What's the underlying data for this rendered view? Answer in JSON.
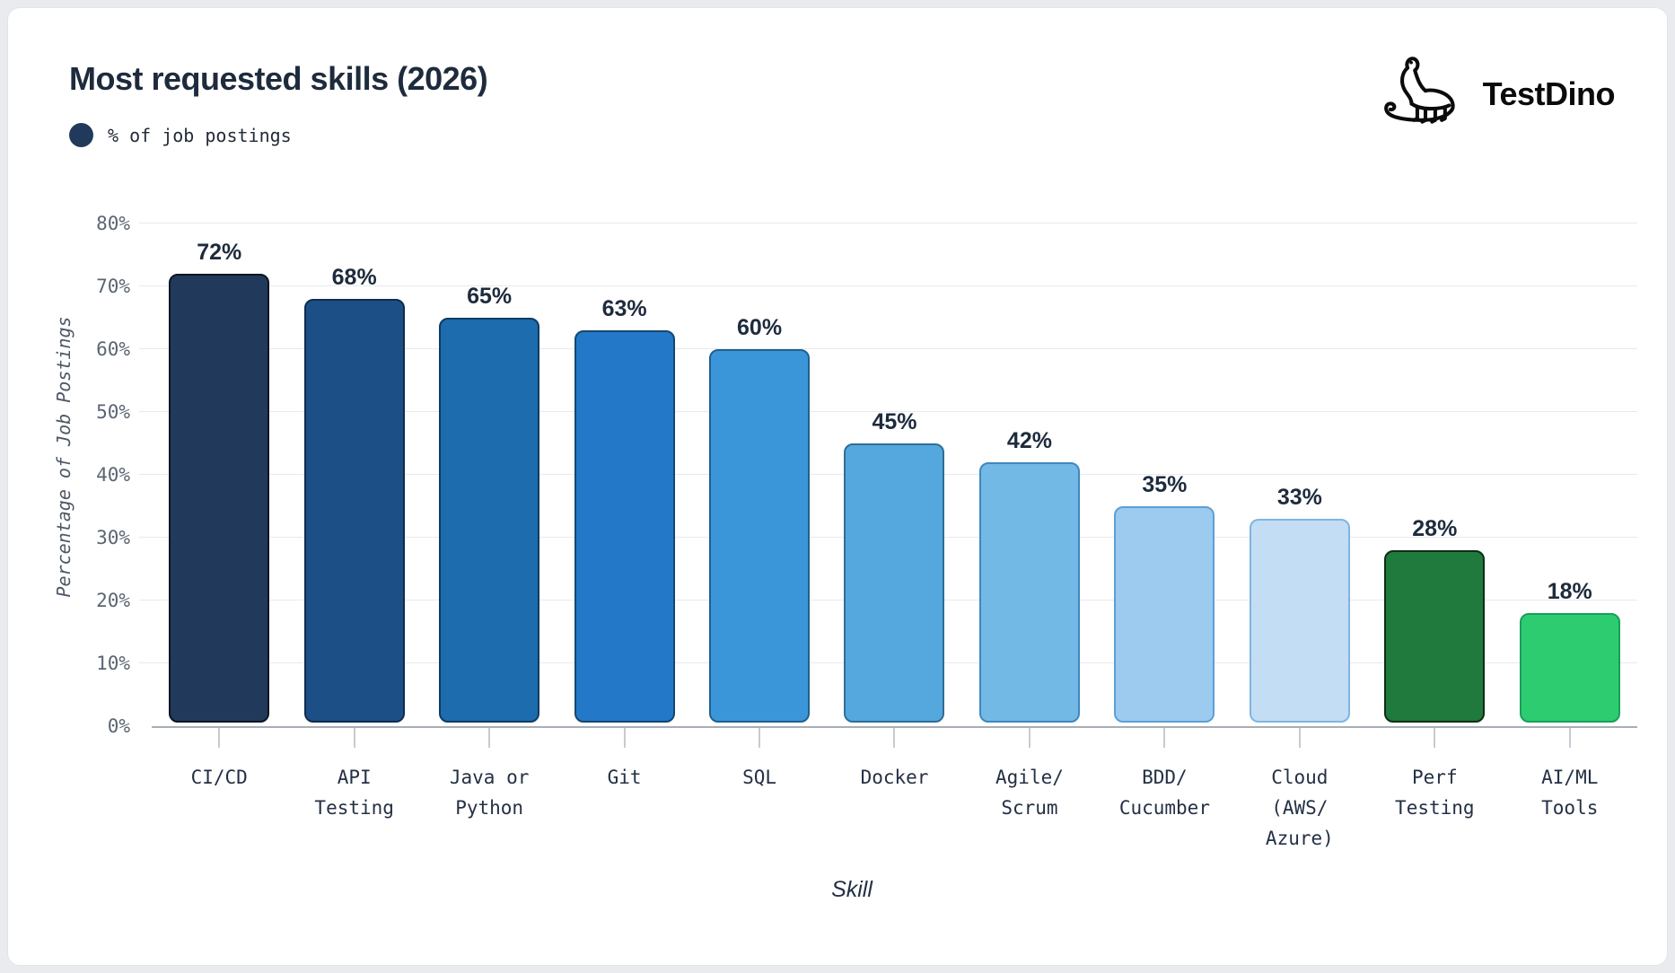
{
  "header": {
    "title": "Most requested skills (2026)",
    "legend_label": "% of job postings",
    "legend_color": "#213a5c",
    "brand": "TestDino"
  },
  "chart_data": {
    "type": "bar",
    "title": "Most requested skills (2026)",
    "xlabel": "Skill",
    "ylabel": "Percentage of Job Postings",
    "legend": [
      "% of job postings"
    ],
    "ylim": [
      0,
      80
    ],
    "ytick_step": 10,
    "ytick_labels": [
      "0%",
      "10%",
      "20%",
      "30%",
      "40%",
      "50%",
      "60%",
      "70%",
      "80%"
    ],
    "grid": "horizontal",
    "categories": [
      "CI/CD",
      "API Testing",
      "Java or Python",
      "Git",
      "SQL",
      "Docker",
      "Agile/Scrum",
      "BDD/Cucumber",
      "Cloud (AWS/Azure)",
      "Perf Testing",
      "AI/ML Tools"
    ],
    "category_lines": [
      [
        "CI/CD"
      ],
      [
        "API",
        "Testing"
      ],
      [
        "Java or",
        "Python"
      ],
      [
        "Git"
      ],
      [
        "SQL"
      ],
      [
        "Docker"
      ],
      [
        "Agile/",
        "Scrum"
      ],
      [
        "BDD/",
        "Cucumber"
      ],
      [
        "Cloud",
        "(AWS/",
        "Azure)"
      ],
      [
        "Perf",
        "Testing"
      ],
      [
        "AI/ML",
        "Tools"
      ]
    ],
    "values": [
      72,
      68,
      65,
      63,
      60,
      45,
      42,
      35,
      33,
      28,
      18
    ],
    "value_labels": [
      "72%",
      "68%",
      "65%",
      "63%",
      "60%",
      "45%",
      "42%",
      "35%",
      "33%",
      "28%",
      "18%"
    ],
    "bar_fill_colors": [
      "#213a5c",
      "#1d4f87",
      "#1c6cae",
      "#2478c8",
      "#3b96d9",
      "#55a8de",
      "#72b9e6",
      "#9ccbef",
      "#c3ddf5",
      "#20793d",
      "#2ecc71"
    ],
    "bar_border_colors": [
      "#0b1522",
      "#0f2c4e",
      "#0f3b61",
      "#14476f",
      "#1f618f",
      "#2f6e96",
      "#3f88be",
      "#5d9fd4",
      "#7fb5e2",
      "#0d2e16",
      "#17a05a"
    ]
  }
}
